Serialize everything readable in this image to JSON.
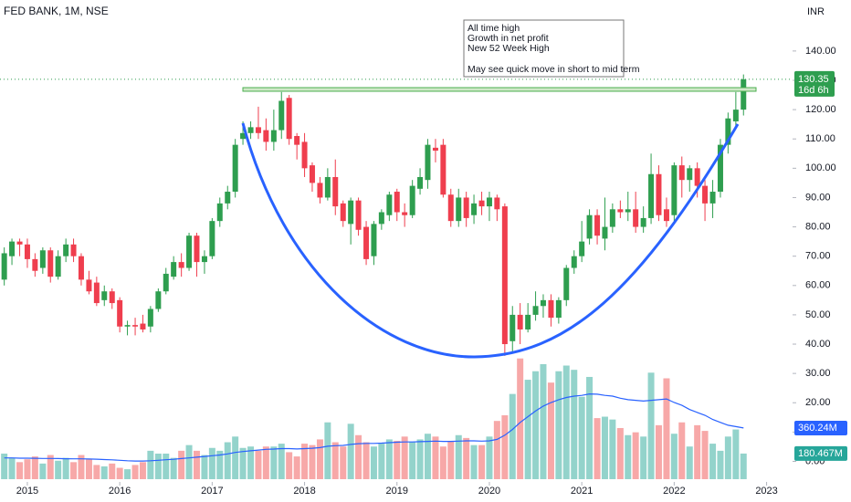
{
  "chart_data": {
    "type": "candlestick",
    "title": "FED BANK, 1M, NSE",
    "currency": "INR",
    "countdown": "16d 6h",
    "annotation": [
      "All time high",
      "Growth in net profit",
      "New 52 Week High",
      "May see quick move in short to mid term"
    ],
    "x": [
      2014.75,
      2014.833,
      2014.917,
      2015,
      2015.083,
      2015.167,
      2015.25,
      2015.333,
      2015.417,
      2015.5,
      2015.583,
      2015.667,
      2015.75,
      2015.833,
      2015.917,
      2016,
      2016.083,
      2016.167,
      2016.25,
      2016.333,
      2016.417,
      2016.5,
      2016.583,
      2016.667,
      2016.75,
      2016.833,
      2016.917,
      2017,
      2017.083,
      2017.167,
      2017.25,
      2017.333,
      2017.417,
      2017.5,
      2017.583,
      2017.667,
      2017.75,
      2017.833,
      2017.917,
      2018,
      2018.083,
      2018.167,
      2018.25,
      2018.333,
      2018.417,
      2018.5,
      2018.583,
      2018.667,
      2018.75,
      2018.833,
      2018.917,
      2019,
      2019.083,
      2019.167,
      2019.25,
      2019.333,
      2019.417,
      2019.5,
      2019.583,
      2019.667,
      2019.75,
      2019.833,
      2019.917,
      2020,
      2020.083,
      2020.167,
      2020.25,
      2020.333,
      2020.417,
      2020.5,
      2020.583,
      2020.667,
      2020.75,
      2020.833,
      2020.917,
      2021,
      2021.083,
      2021.167,
      2021.25,
      2021.333,
      2021.417,
      2021.5,
      2021.583,
      2021.667,
      2021.75,
      2021.833,
      2021.917,
      2022,
      2022.083,
      2022.167,
      2022.25,
      2022.333,
      2022.417,
      2022.5,
      2022.583,
      2022.667,
      2022.75
    ],
    "open": [
      62,
      70,
      75,
      74,
      69,
      66,
      72,
      63,
      70,
      74,
      70,
      62,
      61,
      55,
      58,
      55,
      46,
      46.5,
      47,
      46,
      52,
      58,
      63,
      68,
      66,
      77,
      68,
      70,
      82,
      88,
      92,
      110,
      112,
      114,
      113,
      109,
      113,
      124,
      111,
      109,
      101,
      95,
      90,
      97,
      88,
      81,
      89,
      80,
      70,
      81,
      84,
      92,
      85,
      84,
      93,
      96,
      107,
      108,
      91,
      82,
      90,
      84,
      89,
      87,
      90,
      87,
      41,
      50,
      45,
      50,
      53,
      55,
      49,
      55,
      66,
      70,
      76,
      84,
      76,
      80,
      86,
      85,
      86,
      80,
      83,
      98,
      86,
      84,
      101,
      96,
      100,
      94,
      88,
      92,
      108,
      116,
      120
    ],
    "high": [
      73,
      76,
      76,
      76,
      71,
      73,
      73,
      72,
      76,
      76,
      71,
      65,
      63,
      60,
      59,
      56,
      48,
      49,
      50,
      53,
      59,
      66,
      70,
      71,
      78,
      78,
      72,
      83,
      90,
      94,
      110,
      116,
      116,
      121,
      117,
      120,
      126,
      125,
      112,
      112,
      102,
      97,
      100,
      103,
      89,
      90,
      90,
      82,
      82,
      86,
      92,
      93,
      88,
      96,
      100,
      110,
      110,
      110,
      93,
      93,
      92,
      91,
      92,
      92,
      91,
      88,
      53,
      54,
      54,
      58,
      57,
      57,
      56,
      67,
      72,
      82,
      86,
      86,
      90,
      88,
      89,
      92,
      92,
      87,
      105,
      101,
      90,
      102,
      104,
      101,
      102,
      96,
      96,
      110,
      119,
      126,
      132
    ],
    "low": [
      60,
      67,
      70,
      66,
      63,
      64,
      61,
      62,
      68,
      68,
      60,
      57,
      53,
      53,
      52,
      44,
      43,
      43,
      44,
      44,
      51,
      57,
      62,
      63,
      65,
      63,
      64,
      69,
      80,
      86,
      90,
      108,
      110,
      110,
      106,
      106,
      110,
      108,
      103,
      97,
      92,
      88,
      89,
      84,
      80,
      74,
      77,
      67,
      67,
      79,
      82,
      82,
      80,
      83,
      91,
      93,
      102,
      90,
      80,
      80,
      80,
      81,
      84,
      82,
      82,
      36,
      37,
      40,
      44,
      48,
      49,
      46,
      47,
      53,
      64,
      68,
      74,
      74,
      72,
      78,
      83,
      82,
      78,
      78,
      81,
      82,
      80,
      82,
      90,
      92,
      90,
      82,
      83,
      90,
      105,
      114,
      118
    ],
    "close": [
      71,
      75,
      74,
      69,
      65,
      72,
      63,
      70,
      74,
      70,
      62,
      58,
      54,
      58,
      54,
      46,
      46.5,
      46,
      45,
      52,
      58,
      64,
      68,
      66,
      77,
      68,
      70,
      82,
      88,
      92,
      108,
      112,
      114,
      112,
      109,
      113,
      123,
      110,
      108,
      100,
      95,
      90,
      97,
      87,
      82,
      89,
      79,
      69,
      81,
      85,
      91,
      85,
      84,
      94,
      97,
      108,
      106,
      91,
      82,
      90,
      83,
      88,
      87,
      90,
      86,
      40,
      50,
      45,
      50,
      53,
      55,
      49,
      55,
      66,
      70,
      75,
      84,
      77,
      80,
      86,
      85,
      86,
      80,
      83,
      98,
      84,
      82,
      101,
      96,
      100,
      94,
      88,
      92,
      108,
      117,
      120,
      130.35
    ],
    "up_color": "#2e9e4f",
    "down_color": "#ef3e4e",
    "xlim": [
      2014.704,
      2023.281
    ],
    "xticks": [
      2015,
      2016,
      2017,
      2018,
      2019,
      2020,
      2021,
      2022,
      2023
    ],
    "ylim": [
      -6.7,
      157.4
    ],
    "yticks": [
      {
        "value": 0,
        "label": "0.00"
      },
      {
        "value": 10,
        "label": "10.00"
      },
      {
        "value": 20,
        "label": "20.00"
      },
      {
        "value": 30,
        "label": "30.00"
      },
      {
        "value": 40,
        "label": "40.00"
      },
      {
        "value": 50,
        "label": "50.00"
      },
      {
        "value": 60,
        "label": "60.00"
      },
      {
        "value": 70,
        "label": "70.00"
      },
      {
        "value": 80,
        "label": "80.00"
      },
      {
        "value": 90,
        "label": "90.00"
      },
      {
        "value": 100,
        "label": "100.00"
      },
      {
        "value": 110,
        "label": "110.00"
      },
      {
        "value": 120,
        "label": "120.00"
      },
      {
        "value": 130,
        "label": "130.00"
      },
      {
        "value": 140,
        "label": "140.00"
      }
    ],
    "y2lim": [
      -12.9,
      3374
    ],
    "volume": {
      "up_color": "#93d3cb",
      "down_color": "#f7a8a8",
      "last_value_label": "180.467M",
      "values": [
        180,
        150,
        120,
        140,
        160,
        110,
        170,
        130,
        150,
        120,
        170,
        140,
        100,
        90,
        110,
        80,
        70,
        100,
        120,
        200,
        180,
        180,
        150,
        200,
        240,
        200,
        170,
        220,
        200,
        260,
        300,
        220,
        230,
        200,
        230,
        230,
        250,
        190,
        160,
        250,
        240,
        280,
        400,
        260,
        230,
        390,
        310,
        260,
        230,
        250,
        280,
        270,
        300,
        260,
        280,
        320,
        300,
        230,
        270,
        310,
        290,
        240,
        240,
        300,
        410,
        450,
        600,
        850,
        700,
        760,
        810,
        680,
        760,
        800,
        770,
        580,
        720,
        430,
        440,
        420,
        360,
        310,
        330,
        300,
        750,
        380,
        710,
        320,
        400,
        230,
        380,
        340,
        250,
        200,
        300,
        350,
        180.467
      ]
    },
    "volume_ma": {
      "color": "#2962ff",
      "last_value_label": "360.24M",
      "values": [
        150,
        150,
        148,
        148,
        147,
        146,
        146,
        145,
        144,
        143,
        143,
        142,
        141,
        138,
        136,
        133,
        130,
        128,
        128,
        130,
        133,
        137,
        140,
        145,
        150,
        155,
        160,
        165,
        170,
        178,
        188,
        195,
        200,
        205,
        210,
        212,
        215,
        215,
        213,
        215,
        218,
        222,
        232,
        236,
        238,
        245,
        250,
        252,
        252,
        254,
        257,
        260,
        262,
        262,
        264,
        266,
        268,
        266,
        266,
        268,
        270,
        270,
        268,
        270,
        280,
        310,
        350,
        400,
        440,
        480,
        515,
        540,
        560,
        575,
        585,
        590,
        600,
        598,
        590,
        585,
        570,
        560,
        555,
        550,
        555,
        560,
        565,
        540,
        520,
        490,
        470,
        450,
        420,
        400,
        380,
        370,
        360.24
      ]
    }
  }
}
